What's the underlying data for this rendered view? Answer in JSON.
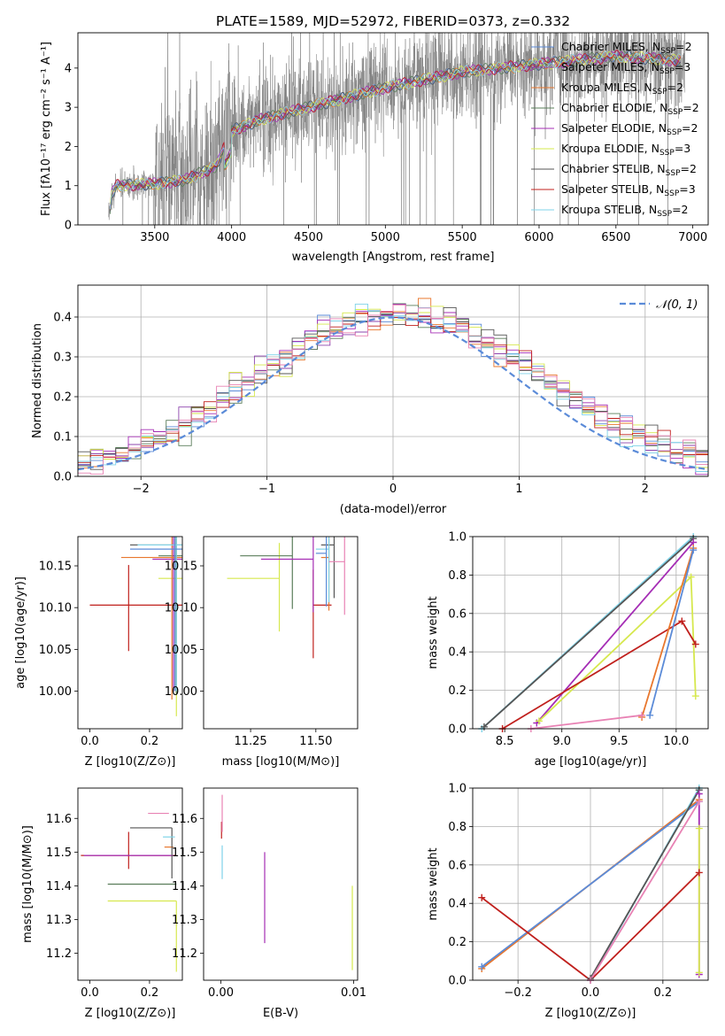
{
  "title": "PLATE=1589, MJD=52972, FIBERID=0373, z=0.332",
  "colors": {
    "Chabrier MILES": "#5b8bd8",
    "Salpeter MILES": "#8e44ad",
    "Kroupa MILES": "#e8772e",
    "Chabrier ELODIE": "#5a7d5a",
    "Salpeter ELODIE": "#a52db5",
    "Kroupa ELODIE": "#d6e84e",
    "Chabrier STELIB": "#555555",
    "Salpeter STELIB": "#c0201d",
    "Kroupa STELIB": "#7fd3e8",
    "normal_curve": "#5b8bd8",
    "pink": "#e882b4",
    "data_spectrum": "#808080"
  },
  "chart_data": [
    {
      "id": "spectrum",
      "type": "line",
      "xlabel": "wavelength [Angstrom, rest frame]",
      "ylabel": "Flux [fλ10⁻¹⁷ erg cm⁻² s⁻¹ A⁻¹]",
      "xlim": [
        3000,
        7100
      ],
      "ylim": [
        0,
        4.9
      ],
      "xticks": [
        "3500",
        "4000",
        "4500",
        "5000",
        "5500",
        "6000",
        "6500",
        "7000"
      ],
      "yticks": [
        "0",
        "1",
        "2",
        "3",
        "4"
      ],
      "grid": false,
      "legend_position": "upper right",
      "legend": [
        {
          "name": "Chabrier MILES",
          "nssp": "2"
        },
        {
          "name": "Salpeter MILES",
          "nssp": "3"
        },
        {
          "name": "Kroupa MILES",
          "nssp": "2"
        },
        {
          "name": "Chabrier ELODIE",
          "nssp": "2"
        },
        {
          "name": "Salpeter ELODIE",
          "nssp": "2"
        },
        {
          "name": "Kroupa ELODIE",
          "nssp": "3"
        },
        {
          "name": "Chabrier STELIB",
          "nssp": "2"
        },
        {
          "name": "Salpeter STELIB",
          "nssp": "3"
        },
        {
          "name": "Kroupa STELIB",
          "nssp": "2"
        }
      ],
      "model_continuum": {
        "x": [
          3200,
          3220,
          3250,
          3500,
          3700,
          3900,
          4000,
          4200,
          4500,
          5000,
          5500,
          6000,
          6500,
          6900
        ],
        "y": [
          0,
          0.8,
          1.0,
          1.05,
          1.15,
          1.5,
          2.4,
          2.7,
          3.0,
          3.5,
          3.9,
          4.1,
          4.3,
          4.2
        ]
      },
      "data_range": [
        3200,
        6950
      ]
    },
    {
      "id": "residuals",
      "type": "histogram",
      "xlabel": "(data-model)/error",
      "ylabel": "Normed distribution",
      "xlim": [
        -2.5,
        2.5
      ],
      "ylim": [
        0,
        0.48
      ],
      "xticks": [
        "−2",
        "−1",
        "0",
        "1",
        "2"
      ],
      "yticks": [
        "0.0",
        "0.1",
        "0.2",
        "0.3",
        "0.4"
      ],
      "grid": true,
      "legend": "𝒩(0, 1)",
      "bin_width": 0.1,
      "reference": "normal pdf, mean 0, sigma 1"
    },
    {
      "id": "age_vs_Z",
      "type": "errorbar",
      "xlabel": "Z [log10(Z/Z⊙)]",
      "ylabel": "age  [log10(age/yr)]",
      "xlim": [
        -0.04,
        0.31
      ],
      "ylim": [
        9.955,
        10.185
      ],
      "xticks": [
        "0.0",
        "0.2"
      ],
      "yticks": [
        "10.00",
        "10.05",
        "10.10",
        "10.15"
      ],
      "points": [
        {
          "series": "Salpeter STELIB",
          "x": 0.13,
          "y": 10.103,
          "xerr": [
            0.13,
            0.2
          ],
          "yerr": [
            0.055,
            0.048
          ]
        },
        {
          "series": "Kroupa ELODIE",
          "x": 0.29,
          "y": 10.135,
          "xerr": [
            0.06,
            0.29
          ],
          "yerr": [
            0.165,
            0.135
          ]
        },
        {
          "series": "Chabrier ELODIE",
          "x": 0.29,
          "y": 10.162,
          "xerr": [
            0.06,
            0.29
          ],
          "yerr": [
            0.165,
            0.162
          ]
        },
        {
          "series": "Salpeter ELODIE",
          "x": 0.28,
          "y": 10.158,
          "xerr": [
            0.07,
            0.28
          ],
          "yerr": [
            0.158,
            0.17
          ]
        },
        {
          "series": "Kroupa MILES",
          "x": 0.275,
          "y": 10.16,
          "xerr": [
            0.17,
            0.275
          ],
          "yerr": [
            0.17,
            0.16
          ]
        },
        {
          "series": "Chabrier STELIB",
          "x": 0.285,
          "y": 10.175,
          "xerr": [
            0.15,
            0.285
          ],
          "yerr": [
            0.175,
            0.165
          ]
        },
        {
          "series": "Kroupa STELIB",
          "x": 0.29,
          "y": 10.175,
          "xerr": [
            0.13,
            0.29
          ],
          "yerr": [
            0.175,
            0.165
          ]
        },
        {
          "series": "Chabrier MILES",
          "x": 0.285,
          "y": 10.17,
          "xerr": [
            0.15,
            0.285
          ],
          "yerr": [
            0.17,
            0.16
          ]
        }
      ]
    },
    {
      "id": "age_vs_mass",
      "type": "errorbar",
      "xlabel": "mass [log10(M/M⊙)]",
      "ylabel": "",
      "xlim": [
        11.07,
        11.66
      ],
      "ylim": [
        9.955,
        10.185
      ],
      "xticks": [
        "11.25",
        "11.50"
      ],
      "yticks": [
        "10.00",
        "10.05",
        "10.10",
        "10.15"
      ],
      "points": [
        {
          "series": "Salpeter STELIB",
          "x": 11.49,
          "y": 10.103,
          "xerr": [
            0.0,
            0.07
          ]
        },
        {
          "series": "Kroupa ELODIE",
          "x": 11.36,
          "y": 10.135,
          "xerr": [
            0.2,
            0.0
          ]
        },
        {
          "series": "Chabrier ELODIE",
          "x": 11.41,
          "y": 10.162,
          "xerr": [
            0.2,
            0.0
          ]
        },
        {
          "series": "Salpeter ELODIE",
          "x": 11.49,
          "y": 10.158,
          "xerr": [
            0.2,
            0.0
          ]
        },
        {
          "series": "Kroupa MILES",
          "x": 11.55,
          "y": 10.16,
          "xerr": [
            0.03,
            0.0
          ]
        },
        {
          "series": "Chabrier STELIB",
          "x": 11.57,
          "y": 10.175,
          "xerr": [
            0.05,
            0.0
          ]
        },
        {
          "series": "Kroupa STELIB",
          "x": 11.55,
          "y": 10.17,
          "xerr": [
            0.05,
            0.0
          ]
        },
        {
          "series": "Chabrier MILES",
          "x": 11.54,
          "y": 10.165,
          "xerr": [
            0.04,
            0.0
          ]
        },
        {
          "series": "pink",
          "x": 11.61,
          "y": 10.155,
          "xerr": [
            0.06,
            0.0
          ]
        }
      ]
    },
    {
      "id": "massweight_vs_age",
      "type": "line",
      "xlabel": "age  [log10(age/yr)]",
      "ylabel": "mass weight",
      "xlim": [
        8.22,
        10.28
      ],
      "ylim": [
        0,
        1.0
      ],
      "xticks": [
        "8.5",
        "9.0",
        "9.5",
        "10.0"
      ],
      "yticks": [
        "0.0",
        "0.2",
        "0.4",
        "0.6",
        "0.8",
        "1.0"
      ],
      "grid": true,
      "series": [
        {
          "name": "Kroupa STELIB",
          "x": [
            8.3,
            10.15
          ],
          "y": [
            0.0,
            1.0
          ]
        },
        {
          "name": "Chabrier STELIB",
          "x": [
            8.32,
            10.15
          ],
          "y": [
            0.01,
            0.99
          ]
        },
        {
          "name": "Salpeter ELODIE",
          "x": [
            8.78,
            10.15
          ],
          "y": [
            0.03,
            0.97
          ]
        },
        {
          "name": "Kroupa ELODIE",
          "x": [
            8.8,
            10.13,
            10.17
          ],
          "y": [
            0.04,
            0.79,
            0.17
          ]
        },
        {
          "name": "Salpeter STELIB",
          "x": [
            8.48,
            10.05,
            10.17
          ],
          "y": [
            0.0,
            0.56,
            0.44
          ]
        },
        {
          "name": "Kroupa MILES",
          "x": [
            9.7,
            10.15
          ],
          "y": [
            0.06,
            0.94
          ]
        },
        {
          "name": "Chabrier MILES",
          "x": [
            9.77,
            10.15
          ],
          "y": [
            0.07,
            0.93
          ]
        },
        {
          "name": "pink",
          "x": [
            8.73,
            9.7
          ],
          "y": [
            0.0,
            0.07
          ]
        }
      ]
    },
    {
      "id": "mass_vs_Z",
      "type": "errorbar",
      "xlabel": "Z [log10(Z/Z⊙)]",
      "ylabel": "mass [log10(M/M⊙)]",
      "xlim": [
        -0.04,
        0.31
      ],
      "ylim": [
        11.12,
        11.69
      ],
      "xticks": [
        "0.0",
        "0.2"
      ],
      "yticks": [
        "11.2",
        "11.3",
        "11.4",
        "11.5",
        "11.6"
      ],
      "points": [
        {
          "series": "Salpeter STELIB",
          "x": 0.13,
          "y": 11.49,
          "xerr": [
            0.16,
            0.16
          ],
          "yerr": [
            0.04,
            0.07
          ]
        },
        {
          "series": "Kroupa ELODIE",
          "x": 0.29,
          "y": 11.355,
          "xerr": [
            0.23,
            0.0
          ],
          "yerr": [
            0.21,
            0.0
          ]
        },
        {
          "series": "Chabrier ELODIE",
          "x": 0.29,
          "y": 11.405,
          "xerr": [
            0.23,
            0.0
          ],
          "yerr": [
            0.0,
            0.0
          ]
        },
        {
          "series": "Salpeter ELODIE",
          "x": 0.28,
          "y": 11.49,
          "xerr": [
            0.3,
            0.0
          ],
          "yerr": [
            0.0,
            0.0
          ]
        },
        {
          "series": "Kroupa MILES",
          "x": 0.28,
          "y": 11.515,
          "xerr": [
            0.03,
            0.0
          ],
          "yerr": [
            0.0,
            0.0
          ]
        },
        {
          "series": "Chabrier STELIB",
          "x": 0.275,
          "y": 11.572,
          "xerr": [
            0.14,
            0.0
          ],
          "yerr": [
            0.15,
            0.0
          ]
        },
        {
          "series": "Kroupa STELIB",
          "x": 0.285,
          "y": 11.545,
          "xerr": [
            0.04,
            0.0
          ],
          "yerr": [
            0.0,
            0.0
          ]
        },
        {
          "series": "pink",
          "x": 0.265,
          "y": 11.615,
          "xerr": [
            0.07,
            0.0
          ],
          "yerr": [
            0.0,
            0.0
          ]
        }
      ]
    },
    {
      "id": "mass_vs_ebv",
      "type": "errorbar",
      "xlabel": "E(B-V)",
      "ylabel": "",
      "xlim": [
        -0.0013,
        0.0103
      ],
      "ylim": [
        11.12,
        11.69
      ],
      "xticks": [
        "0.00",
        "0.01"
      ],
      "yticks": [
        "11.2",
        "11.3",
        "11.4",
        "11.5",
        "11.6"
      ],
      "points": [
        {
          "series": "Salpeter STELIB",
          "x": 5e-05,
          "y": 11.56,
          "yerr": [
            0.02,
            0.03
          ]
        },
        {
          "series": "pink",
          "x": 0.0001,
          "y": 11.6,
          "yerr": [
            0.04,
            0.07
          ]
        },
        {
          "series": "Kroupa STELIB",
          "x": 0.0001,
          "y": 11.52,
          "yerr": [
            0.1,
            0.0
          ]
        },
        {
          "series": "Salpeter ELODIE",
          "x": 0.0033,
          "y": 11.37,
          "yerr": [
            0.14,
            0.13
          ]
        },
        {
          "series": "Kroupa ELODIE",
          "x": 0.0099,
          "y": 11.28,
          "yerr": [
            0.13,
            0.12
          ]
        }
      ]
    },
    {
      "id": "massweight_vs_Z",
      "type": "line",
      "xlabel": "Z [log10(Z/Z⊙)]",
      "ylabel": "mass weight",
      "xlim": [
        -0.325,
        0.325
      ],
      "ylim": [
        0,
        1.0
      ],
      "xticks": [
        "−0.2",
        "0.0",
        "0.2"
      ],
      "yticks": [
        "0.0",
        "0.2",
        "0.4",
        "0.6",
        "0.8",
        "1.0"
      ],
      "grid": true,
      "series": [
        {
          "name": "Kroupa MILES",
          "x": [
            -0.3,
            0.3
          ],
          "y": [
            0.06,
            0.94
          ]
        },
        {
          "name": "Chabrier MILES",
          "x": [
            -0.3,
            0.3
          ],
          "y": [
            0.07,
            0.93
          ]
        },
        {
          "name": "Salpeter STELIB",
          "x": [
            -0.3,
            0.0,
            0.3
          ],
          "y": [
            0.43,
            0.0,
            0.56
          ]
        },
        {
          "name": "Kroupa STELIB",
          "x": [
            0.0,
            0.3
          ],
          "y": [
            0.0,
            1.0
          ]
        },
        {
          "name": "Chabrier STELIB",
          "x": [
            0.0,
            0.3
          ],
          "y": [
            0.01,
            0.99
          ]
        },
        {
          "name": "Salpeter ELODIE",
          "x": [
            0.3,
            0.3
          ],
          "y": [
            0.97,
            0.03
          ]
        },
        {
          "name": "Kroupa ELODIE",
          "x": [
            0.3,
            0.3
          ],
          "y": [
            0.79,
            0.04
          ]
        },
        {
          "name": "pink",
          "x": [
            0.0,
            0.3
          ],
          "y": [
            0.0,
            0.93
          ]
        }
      ]
    }
  ]
}
